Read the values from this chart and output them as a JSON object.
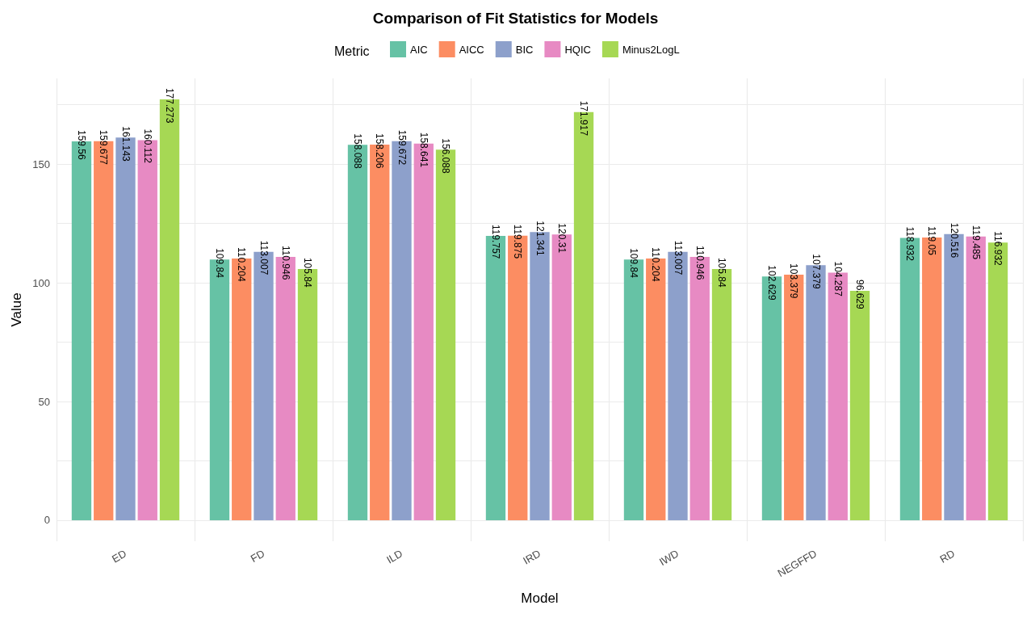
{
  "chart_data": {
    "type": "bar",
    "title": "Comparison of Fit Statistics for Models",
    "xlabel": "Model",
    "ylabel": "Value",
    "legend_title": "Metric",
    "categories": [
      "ED",
      "FD",
      "ILD",
      "IRD",
      "IWD",
      "NEGFFD",
      "RD"
    ],
    "series": [
      {
        "name": "AIC",
        "color": "#66c2a5",
        "values": [
          159.56,
          109.84,
          158.088,
          119.757,
          109.84,
          102.629,
          118.932
        ]
      },
      {
        "name": "AICC",
        "color": "#fc8d62",
        "values": [
          159.677,
          110.204,
          158.206,
          119.875,
          110.204,
          103.379,
          119.05
        ]
      },
      {
        "name": "BIC",
        "color": "#8da0cb",
        "values": [
          161.143,
          113.007,
          159.672,
          121.341,
          113.007,
          107.379,
          120.516
        ]
      },
      {
        "name": "HQIC",
        "color": "#e78ac3",
        "values": [
          160.112,
          110.946,
          158.641,
          120.31,
          110.946,
          104.287,
          119.485
        ]
      },
      {
        "name": "Minus2LogL",
        "color": "#a6d854",
        "values": [
          177.273,
          105.84,
          156.088,
          171.917,
          105.84,
          96.629,
          116.932
        ]
      }
    ],
    "ylim": [
      -8.86,
      186.1
    ],
    "yticks": [
      0,
      {
        "value": 25,
        "label": null
      },
      50,
      {
        "value": 75,
        "label": null
      },
      100,
      {
        "value": 125,
        "label": null
      },
      150,
      {
        "value": 175,
        "label": null
      }
    ],
    "grid": true,
    "legend": "top",
    "data_labels": true
  }
}
